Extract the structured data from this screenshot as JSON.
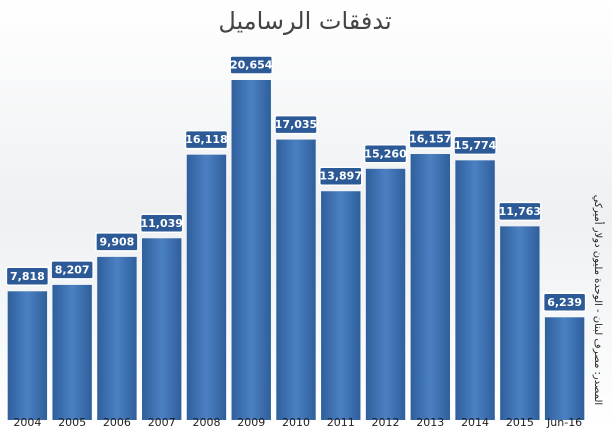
{
  "chart_data": {
    "type": "bar",
    "title": "تدفقات الرساميل",
    "y_label": "المصدر: مصرف لبنان - الوحدة مليون دولار أميركي",
    "categories": [
      "2004",
      "2005",
      "2006",
      "2007",
      "2008",
      "2009",
      "2010",
      "2011",
      "2012",
      "2013",
      "2014",
      "2015",
      "Jun-16"
    ],
    "values": [
      7818,
      8207,
      9908,
      11039,
      16118,
      20654,
      17035,
      13897,
      15260,
      16157,
      15774,
      11763,
      6239
    ],
    "value_labels": [
      "7,818",
      "8,207",
      "9,908",
      "11,039",
      "16,118",
      "20,654",
      "17,035",
      "13,897",
      "15,260",
      "16,157",
      "15,774",
      "11,763",
      "6,239"
    ],
    "color": "#3a6fb0"
  }
}
